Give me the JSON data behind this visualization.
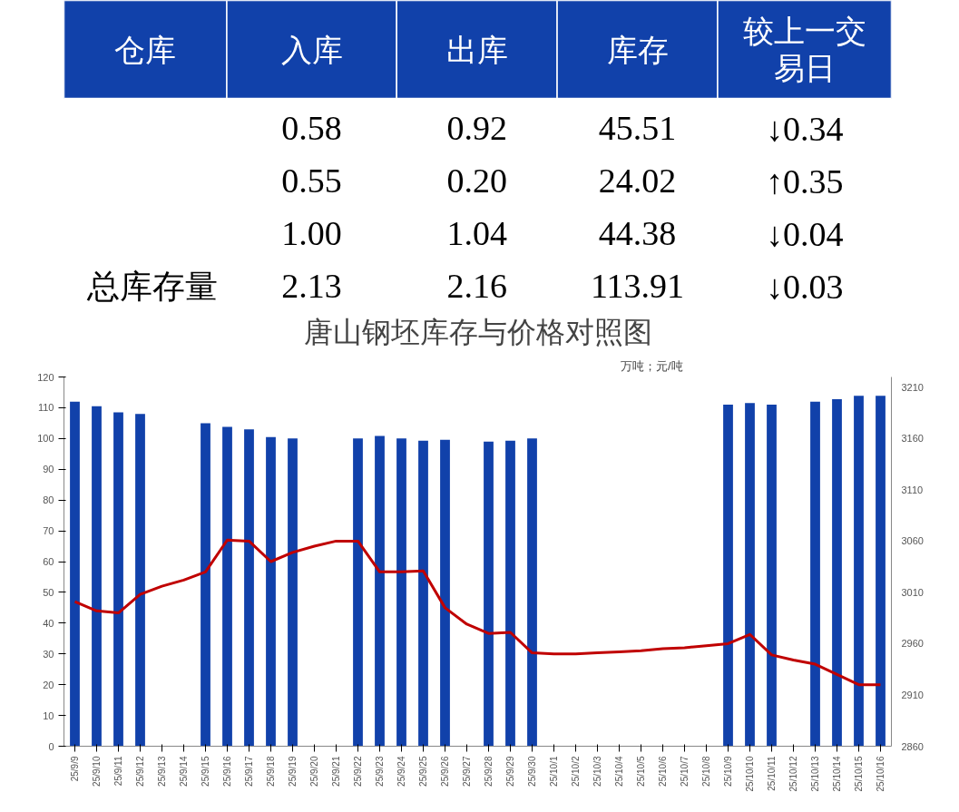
{
  "chart_data": [
    {
      "type": "other",
      "categories": [
        "仓库",
        "入库",
        "出库",
        "库存",
        "较上一交易日"
      ],
      "y_categories": [
        null,
        null,
        null,
        "总库存量"
      ],
      "annotations": [
        "0.58",
        "0.92",
        "45.51",
        "↓0.34",
        "0.55",
        "0.20",
        "24.02",
        "↑0.35",
        "1.00",
        "1.04",
        "44.38",
        "↓0.04",
        "2.13",
        "2.16",
        "113.91",
        "↓0.03"
      ],
      "colors": [
        "#1141aa",
        "#1141aa",
        "#1141aa",
        "#1141aa",
        "#1141aa"
      ]
    },
    {
      "type": "bar",
      "title": "唐山钢坯库存与价格对照图",
      "annotations": [
        "万吨；元/吨"
      ],
      "categories": [
        "25/9/9",
        "25/9/10",
        "25/9/11",
        "25/9/12",
        "25/9/13",
        "25/9/14",
        "25/9/15",
        "25/9/16",
        "25/9/17",
        "25/9/18",
        "25/9/19",
        "25/9/20",
        "25/9/21",
        "25/9/22",
        "25/9/23",
        "25/9/24",
        "25/9/25",
        "25/9/26",
        "25/9/27",
        "25/9/28",
        "25/9/29",
        "25/9/30",
        "25/10/1",
        "25/10/2",
        "25/10/3",
        "25/10/4",
        "25/10/5",
        "25/10/6",
        "25/10/7",
        "25/10/8",
        "25/10/9",
        "25/10/10",
        "25/10/11",
        "25/10/12",
        "25/10/13",
        "25/10/14",
        "25/10/15",
        "25/10/16"
      ],
      "series": [
        {
          "type": "bar",
          "color": "#1141aa",
          "values": [
            112,
            110.5,
            108.5,
            108,
            null,
            null,
            105,
            103.8,
            103,
            100.5,
            100,
            null,
            null,
            100,
            100.8,
            100,
            99.3,
            99.6,
            null,
            99,
            99.3,
            100,
            null,
            null,
            null,
            null,
            null,
            null,
            null,
            null,
            111,
            111.5,
            111,
            null,
            112,
            112.8,
            113.9,
            113.9
          ]
        },
        {
          "type": "line",
          "axis": "y2",
          "color": "#c00000",
          "values": [
            3001,
            2992,
            2990,
            3008,
            3016,
            3022,
            3030,
            3061,
            3060,
            3040,
            3049,
            3055,
            3060,
            3060,
            3030,
            3030,
            3031,
            2995,
            2979,
            2970,
            2971,
            2951,
            2950,
            2950,
            2951,
            2952,
            2953,
            2955,
            2956,
            2958,
            2960,
            2969,
            2949,
            2944,
            2940,
            2930,
            2920,
            2920
          ]
        }
      ],
      "ylim": [
        0,
        120
      ],
      "yticks": [
        0,
        10,
        20,
        30,
        40,
        50,
        60,
        70,
        80,
        90,
        100,
        110,
        120
      ],
      "y2lim": [
        2860,
        3220
      ],
      "y2ticks": [
        2860,
        2910,
        2960,
        3010,
        3060,
        3110,
        3160,
        3210
      ],
      "grid": false,
      "line_style": "solid",
      "marker": "none"
    }
  ]
}
